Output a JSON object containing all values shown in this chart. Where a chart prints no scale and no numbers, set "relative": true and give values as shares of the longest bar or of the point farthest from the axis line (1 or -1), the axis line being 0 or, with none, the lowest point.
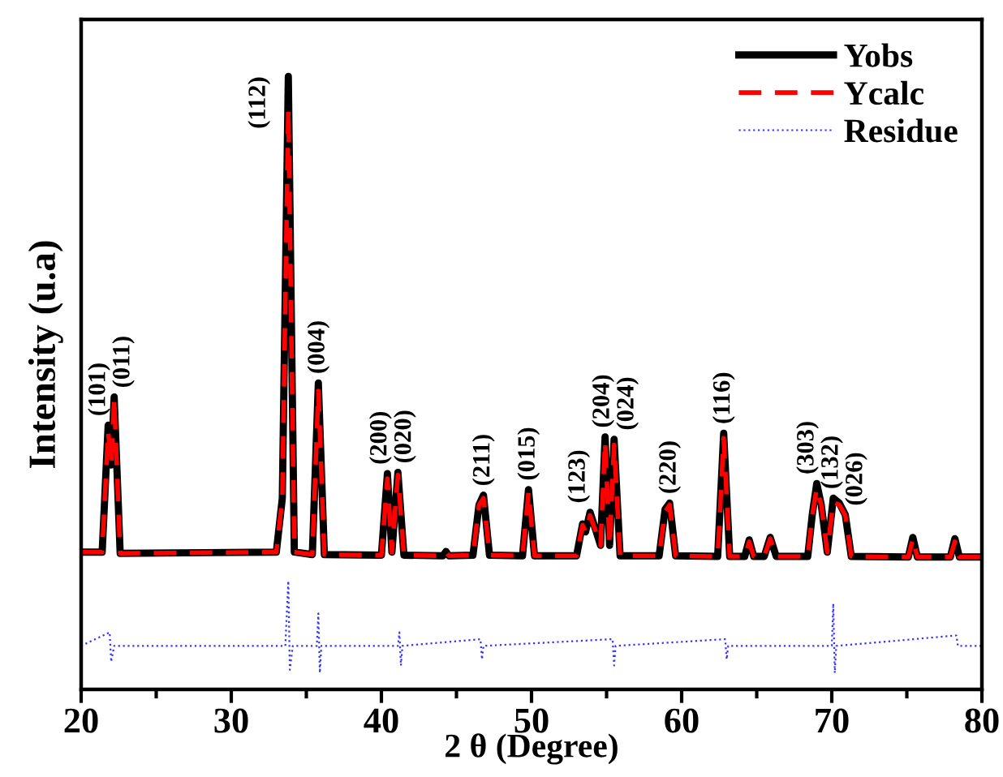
{
  "chart_data": {
    "type": "line",
    "relative": true,
    "xlabel": "2 θ (Degree)",
    "ylabel": "Intensity (u.a)",
    "xlim": [
      20,
      80
    ],
    "xticks": [
      20,
      {
        "value": 25,
        "label": null
      },
      30,
      {
        "value": 35,
        "label": null
      },
      40,
      {
        "value": 45,
        "label": null
      },
      50,
      {
        "value": 55,
        "label": null
      },
      60,
      {
        "value": 65,
        "label": null
      },
      70,
      {
        "value": 75,
        "label": null
      },
      80
    ],
    "tick_labels": "x",
    "grid": false,
    "legend": "top right",
    "marker": "none",
    "x": [
      20,
      21.4,
      21.8,
      22.0,
      22.2,
      22.6,
      33.0,
      33.4,
      33.8,
      34.2,
      35.4,
      35.8,
      36.2,
      40.0,
      40.4,
      40.7,
      41.1,
      41.5,
      44.1,
      44.3,
      44.5,
      46.1,
      46.5,
      46.8,
      47.2,
      49.4,
      49.8,
      50.2,
      53.0,
      53.4,
      53.6,
      53.9,
      54.6,
      54.9,
      55.2,
      55.5,
      55.9,
      58.5,
      58.9,
      59.2,
      59.6,
      62.4,
      62.8,
      63.2,
      64.2,
      64.5,
      64.8,
      65.5,
      65.9,
      66.3,
      68.4,
      68.7,
      69.0,
      69.3,
      69.7,
      70.1,
      70.5,
      70.9,
      71.3,
      75.1,
      75.4,
      75.7,
      77.9,
      78.2,
      78.5,
      80
    ],
    "series": [
      {
        "name": "Yobs",
        "color": "#000000",
        "line_style": "solid",
        "values": [
          0.224,
          0.224,
          0.431,
          0.366,
          0.477,
          0.222,
          0.224,
          0.312,
          1.0,
          0.224,
          0.22,
          0.5,
          0.22,
          0.219,
          0.352,
          0.224,
          0.354,
          0.219,
          0.218,
          0.225,
          0.218,
          0.219,
          0.301,
          0.317,
          0.219,
          0.218,
          0.326,
          0.218,
          0.218,
          0.27,
          0.257,
          0.289,
          0.235,
          0.412,
          0.235,
          0.408,
          0.218,
          0.218,
          0.294,
          0.304,
          0.218,
          0.217,
          0.418,
          0.217,
          0.217,
          0.244,
          0.217,
          0.217,
          0.248,
          0.217,
          0.217,
          0.285,
          0.336,
          0.301,
          0.224,
          0.312,
          0.304,
          0.285,
          0.217,
          0.216,
          0.248,
          0.216,
          0.216,
          0.246,
          0.216,
          0.216
        ]
      },
      {
        "name": "Ycalc",
        "color": "#ff0000",
        "line_style": "dashed",
        "values": [
          0.224,
          0.224,
          0.421,
          0.366,
          0.476,
          0.222,
          0.224,
          0.312,
          0.947,
          0.224,
          0.22,
          0.487,
          0.22,
          0.219,
          0.344,
          0.224,
          0.35,
          0.219,
          0.218,
          0.224,
          0.218,
          0.219,
          0.301,
          0.312,
          0.219,
          0.218,
          0.322,
          0.218,
          0.218,
          0.268,
          0.257,
          0.284,
          0.235,
          0.404,
          0.235,
          0.399,
          0.218,
          0.218,
          0.29,
          0.301,
          0.218,
          0.217,
          0.41,
          0.217,
          0.217,
          0.241,
          0.217,
          0.217,
          0.246,
          0.217,
          0.217,
          0.284,
          0.328,
          0.301,
          0.224,
          0.306,
          0.301,
          0.284,
          0.217,
          0.216,
          0.246,
          0.216,
          0.216,
          0.241,
          0.216,
          0.216
        ]
      },
      {
        "name": "Residue",
        "color": "#3333ff",
        "line_style": "dotted",
        "x": [
          20,
          21.9,
          22.0,
          22.2,
          33.6,
          33.8,
          33.9,
          34.1,
          35.7,
          35.8,
          35.9,
          36.0,
          41.1,
          41.2,
          41.3,
          41.4,
          46.6,
          46.7,
          46.8,
          55.4,
          55.5,
          55.6,
          62.9,
          63.0,
          63.1,
          70.0,
          70.1,
          70.2,
          70.3,
          78.3,
          78.4,
          80
        ],
        "values": [
          0.071,
          0.093,
          0.045,
          0.071,
          0.071,
          0.177,
          0.032,
          0.071,
          0.071,
          0.124,
          0.027,
          0.071,
          0.071,
          0.093,
          0.039,
          0.071,
          0.082,
          0.049,
          0.071,
          0.082,
          0.039,
          0.071,
          0.082,
          0.049,
          0.071,
          0.071,
          0.14,
          0.027,
          0.071,
          0.088,
          0.071,
          0.071
        ]
      }
    ],
    "annotations": [
      {
        "text": "(101)",
        "x": 21.8,
        "y": 0.431
      },
      {
        "text": "(011)",
        "x": 22.2,
        "y": 0.477
      },
      {
        "text": "(112)",
        "x": 33.8,
        "y": 1.0
      },
      {
        "text": "(004)",
        "x": 35.8,
        "y": 0.5
      },
      {
        "text": "(200)",
        "x": 40.4,
        "y": 0.352
      },
      {
        "text": "(020)",
        "x": 41.1,
        "y": 0.354
      },
      {
        "text": "(211)",
        "x": 46.8,
        "y": 0.317
      },
      {
        "text": "(015)",
        "x": 49.8,
        "y": 0.326
      },
      {
        "text": "(123)",
        "x": 53.9,
        "y": 0.289
      },
      {
        "text": "(204)",
        "x": 54.9,
        "y": 0.412
      },
      {
        "text": "(024)",
        "x": 55.5,
        "y": 0.408
      },
      {
        "text": "(220)",
        "x": 59.2,
        "y": 0.304
      },
      {
        "text": "(116)",
        "x": 62.8,
        "y": 0.418
      },
      {
        "text": "(303)",
        "x": 69.0,
        "y": 0.336
      },
      {
        "text": "(132)",
        "x": 70.1,
        "y": 0.312
      },
      {
        "text": "(026)",
        "x": 70.9,
        "y": 0.285
      }
    ]
  }
}
